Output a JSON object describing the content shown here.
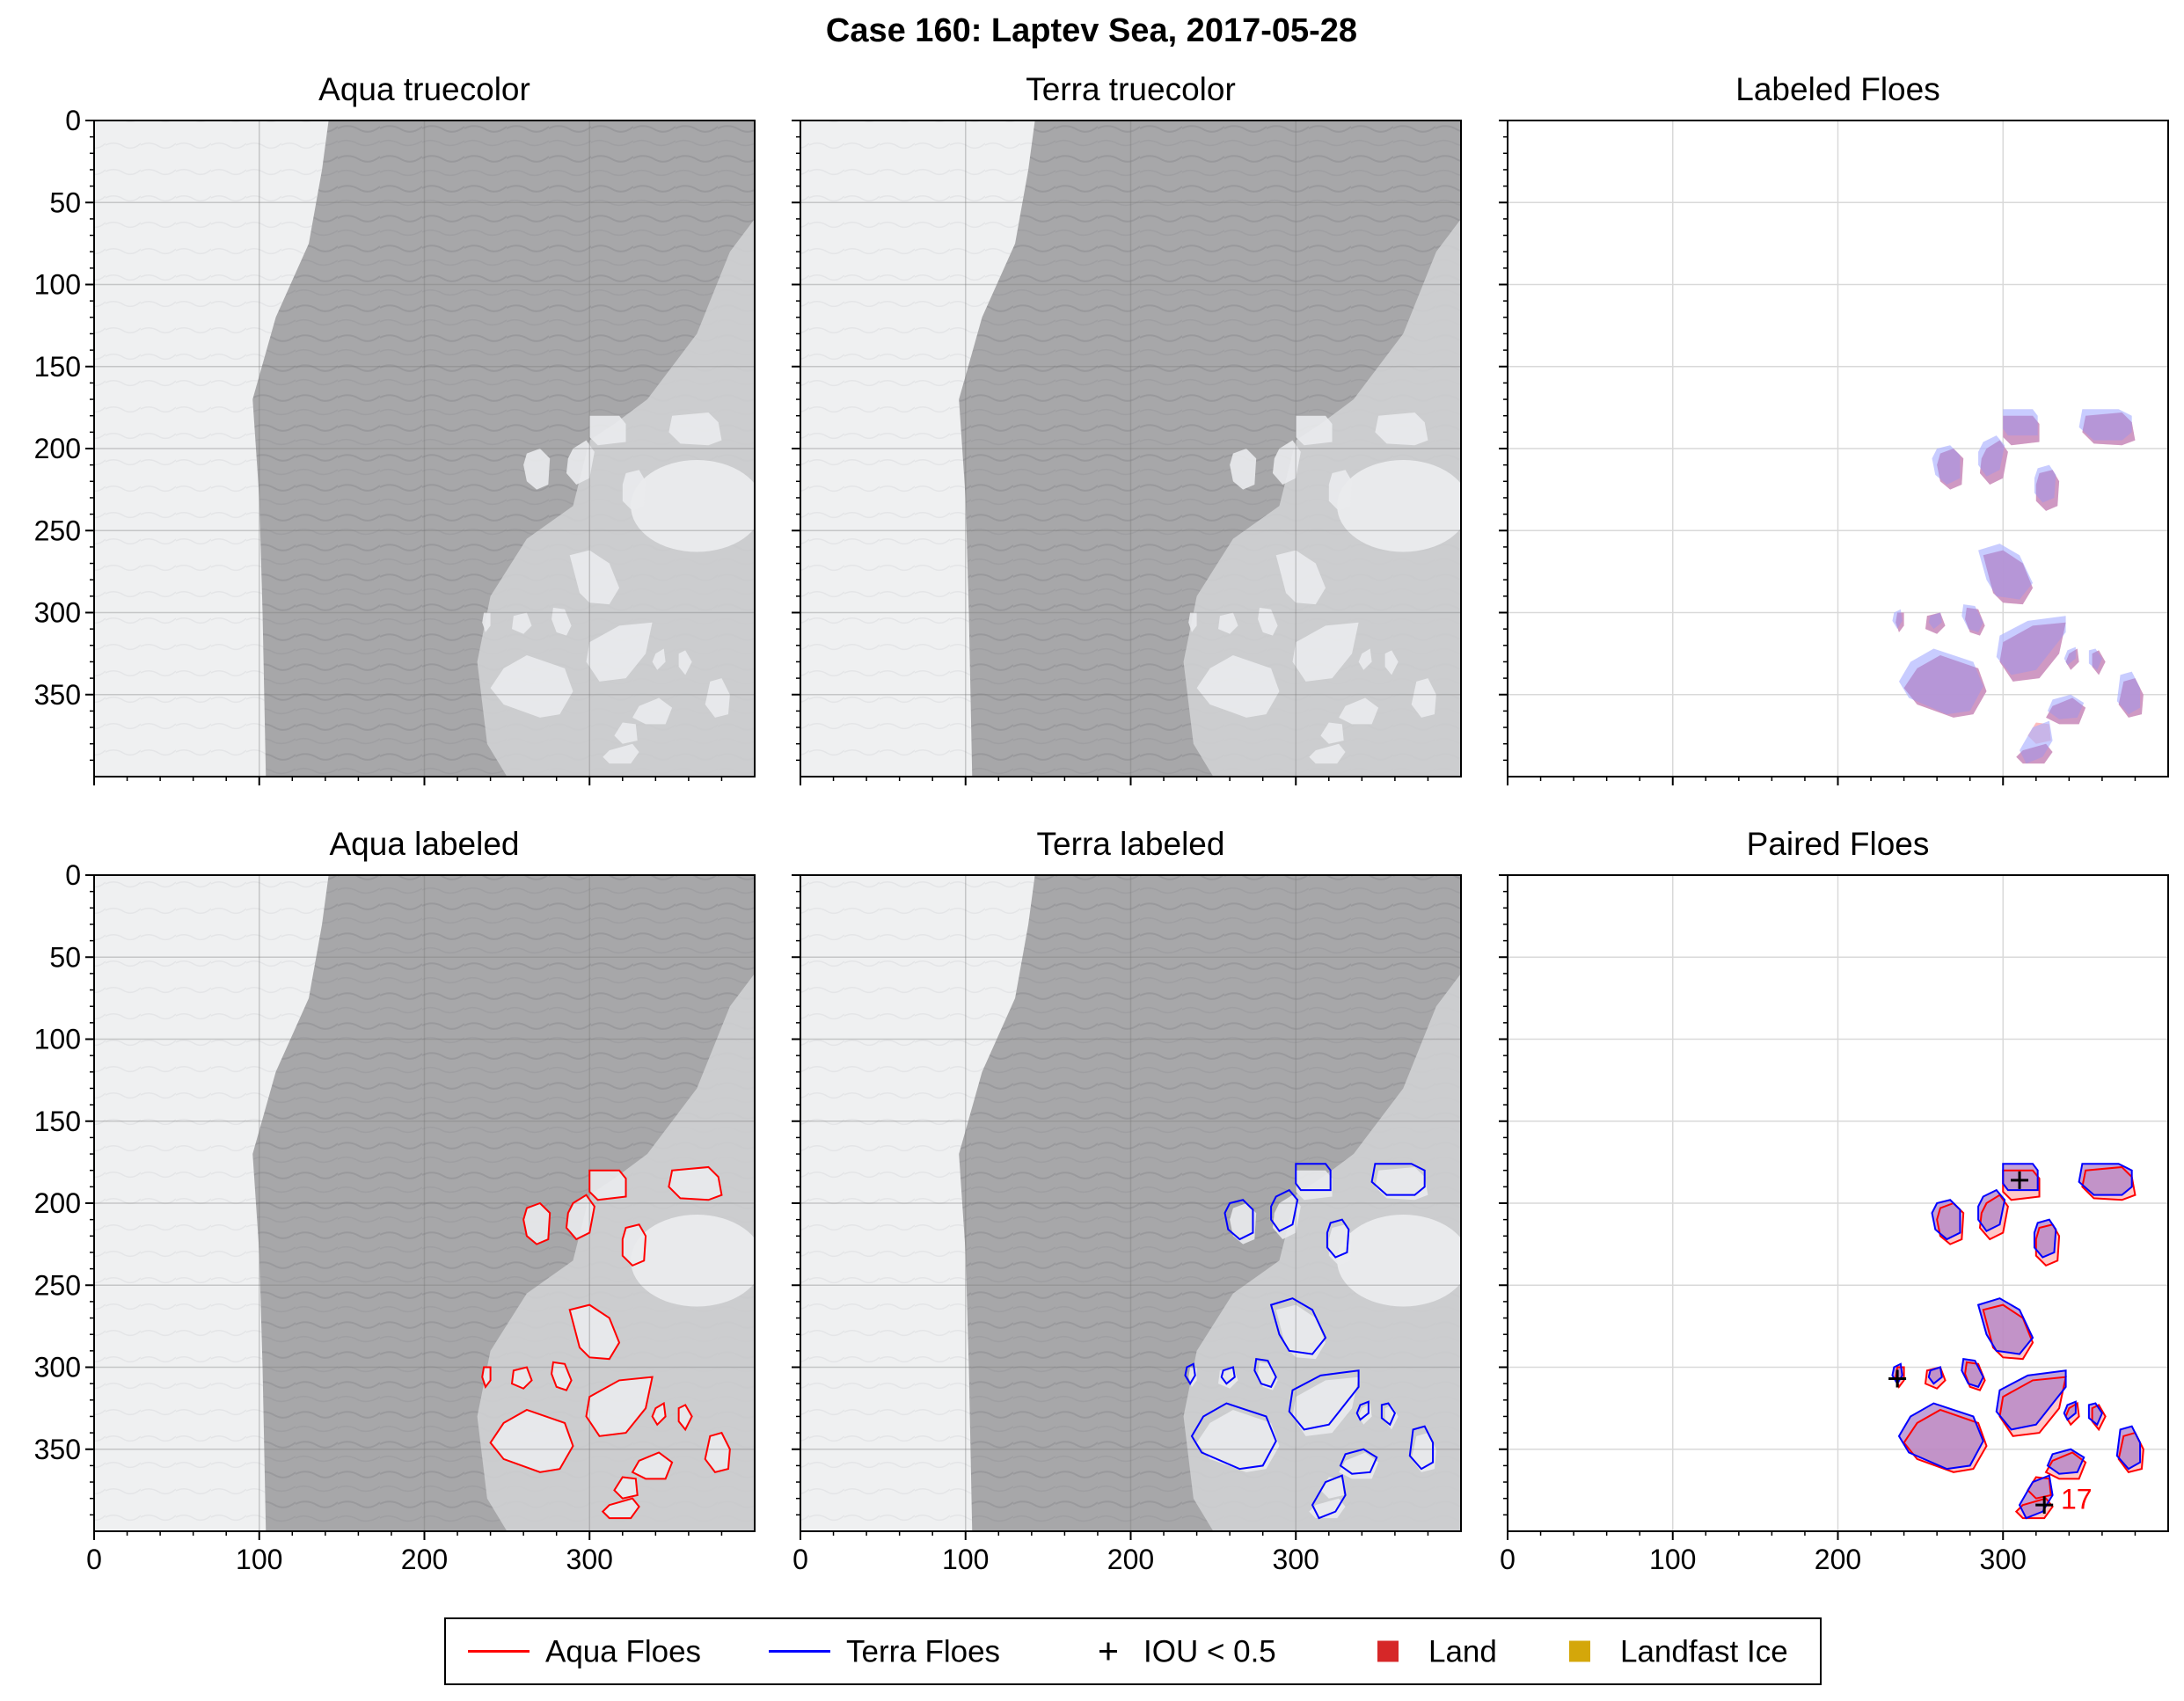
{
  "figure": {
    "title": "Case 160: Laptev Sea, 2017-05-28"
  },
  "panels": [
    {
      "id": "aqua-truecolor",
      "title": "Aqua truecolor",
      "kind": "image"
    },
    {
      "id": "terra-truecolor",
      "title": "Terra truecolor",
      "kind": "image"
    },
    {
      "id": "labeled-floes",
      "title": "Labeled Floes",
      "kind": "labels"
    },
    {
      "id": "aqua-labeled",
      "title": "Aqua labeled",
      "kind": "image-outline",
      "outline": "aqua"
    },
    {
      "id": "terra-labeled",
      "title": "Terra labeled",
      "kind": "image-outline",
      "outline": "terra"
    },
    {
      "id": "paired-floes",
      "title": "Paired Floes",
      "kind": "paired"
    }
  ],
  "axes": {
    "xlim": [
      0,
      400
    ],
    "ylim": [
      400,
      0
    ],
    "xticks": [
      "0",
      "100",
      "200",
      "300"
    ],
    "yticks": [
      "0",
      "50",
      "100",
      "150",
      "200",
      "250",
      "300",
      "350"
    ],
    "grid": true
  },
  "legend": {
    "placement": "bottom-center",
    "items": [
      {
        "label": "Aqua Floes",
        "symbol": "line",
        "color": "#ff0000"
      },
      {
        "label": "Terra Floes",
        "symbol": "line",
        "color": "#0000ff"
      },
      {
        "label": "IOU < 0.5",
        "symbol": "plus",
        "color": "#000000"
      },
      {
        "label": "Land",
        "symbol": "square",
        "color": "#d62728"
      },
      {
        "label": "Landfast Ice",
        "symbol": "square",
        "color": "#d4a70a"
      }
    ]
  },
  "annotations": [
    {
      "text": "17",
      "x": 335,
      "y": 380,
      "color": "#ff0000"
    }
  ],
  "colors": {
    "aqua": "#ff0000",
    "terra": "#0000ff",
    "aqua_fill": "#ffb0b0",
    "terra_fill": "#aab0ff",
    "overlap_fill": "#a87cc8",
    "overlap_stroke": "#7a4bb0",
    "fastice": "#eff0f1",
    "water": "#a7a7a9",
    "packice": "#d2d3d6"
  },
  "chart_data": {
    "type": "image-panels",
    "xlim": [
      0,
      400
    ],
    "ylim": [
      400,
      0
    ],
    "floes": [
      {
        "id": 1,
        "aqua": [
          [
            300,
            180
          ],
          [
            318,
            180
          ],
          [
            322,
            185
          ],
          [
            322,
            196
          ],
          [
            305,
            198
          ],
          [
            300,
            193
          ]
        ],
        "terra": [
          [
            300,
            176
          ],
          [
            318,
            176
          ],
          [
            321,
            180
          ],
          [
            321,
            192
          ],
          [
            303,
            192
          ],
          [
            300,
            188
          ]
        ]
      },
      {
        "id": 2,
        "aqua": [
          [
            350,
            180
          ],
          [
            372,
            178
          ],
          [
            378,
            184
          ],
          [
            380,
            195
          ],
          [
            372,
            198
          ],
          [
            355,
            197
          ],
          [
            348,
            190
          ]
        ],
        "terra": [
          [
            348,
            176
          ],
          [
            370,
            176
          ],
          [
            378,
            180
          ],
          [
            378,
            190
          ],
          [
            372,
            195
          ],
          [
            355,
            195
          ],
          [
            346,
            187
          ]
        ]
      },
      {
        "id": 3,
        "aqua": [
          [
            262,
            203
          ],
          [
            270,
            200
          ],
          [
            276,
            206
          ],
          [
            275,
            222
          ],
          [
            268,
            225
          ],
          [
            262,
            220
          ],
          [
            260,
            210
          ]
        ],
        "terra": [
          [
            260,
            200
          ],
          [
            268,
            198
          ],
          [
            274,
            204
          ],
          [
            274,
            218
          ],
          [
            266,
            222
          ],
          [
            259,
            216
          ],
          [
            257,
            206
          ]
        ]
      },
      {
        "id": 4,
        "aqua": [
          [
            290,
            200
          ],
          [
            298,
            195
          ],
          [
            303,
            202
          ],
          [
            300,
            218
          ],
          [
            292,
            222
          ],
          [
            286,
            215
          ],
          [
            287,
            206
          ]
        ],
        "terra": [
          [
            288,
            196
          ],
          [
            296,
            192
          ],
          [
            301,
            198
          ],
          [
            298,
            213
          ],
          [
            290,
            217
          ],
          [
            285,
            210
          ],
          [
            285,
            202
          ]
        ]
      },
      {
        "id": 5,
        "aqua": [
          [
            322,
            215
          ],
          [
            330,
            213
          ],
          [
            334,
            220
          ],
          [
            333,
            235
          ],
          [
            326,
            238
          ],
          [
            320,
            232
          ],
          [
            320,
            222
          ]
        ],
        "terra": [
          [
            321,
            212
          ],
          [
            328,
            210
          ],
          [
            332,
            216
          ],
          [
            331,
            230
          ],
          [
            324,
            233
          ],
          [
            319,
            227
          ],
          [
            319,
            218
          ]
        ]
      },
      {
        "id": 6,
        "aqua": [
          [
            288,
            265
          ],
          [
            300,
            262
          ],
          [
            312,
            270
          ],
          [
            318,
            285
          ],
          [
            312,
            295
          ],
          [
            300,
            294
          ],
          [
            294,
            288
          ]
        ],
        "terra": [
          [
            285,
            262
          ],
          [
            298,
            258
          ],
          [
            310,
            265
          ],
          [
            318,
            282
          ],
          [
            310,
            292
          ],
          [
            296,
            290
          ],
          [
            290,
            280
          ]
        ]
      },
      {
        "id": 7,
        "aqua": [
          [
            236,
            300
          ],
          [
            240,
            300
          ],
          [
            240,
            308
          ],
          [
            237,
            312
          ],
          [
            235,
            306
          ]
        ],
        "terra": [
          [
            234,
            300
          ],
          [
            238,
            298
          ],
          [
            239,
            305
          ],
          [
            236,
            310
          ],
          [
            233,
            305
          ]
        ]
      },
      {
        "id": 8,
        "aqua": [
          [
            254,
            302
          ],
          [
            262,
            300
          ],
          [
            265,
            308
          ],
          [
            260,
            313
          ],
          [
            253,
            310
          ]
        ],
        "terra": [
          [
            256,
            302
          ],
          [
            262,
            300
          ],
          [
            263,
            306
          ],
          [
            258,
            310
          ],
          [
            255,
            306
          ]
        ]
      },
      {
        "id": 9,
        "aqua": [
          [
            278,
            297
          ],
          [
            285,
            298
          ],
          [
            289,
            308
          ],
          [
            286,
            314
          ],
          [
            280,
            312
          ],
          [
            277,
            304
          ]
        ],
        "terra": [
          [
            276,
            295
          ],
          [
            283,
            296
          ],
          [
            288,
            306
          ],
          [
            285,
            312
          ],
          [
            279,
            310
          ],
          [
            275,
            302
          ]
        ]
      },
      {
        "id": 10,
        "aqua": [
          [
            300,
            318
          ],
          [
            318,
            308
          ],
          [
            338,
            306
          ],
          [
            334,
            325
          ],
          [
            322,
            340
          ],
          [
            306,
            342
          ],
          [
            298,
            330
          ]
        ],
        "terra": [
          [
            298,
            314
          ],
          [
            315,
            305
          ],
          [
            338,
            302
          ],
          [
            338,
            312
          ],
          [
            320,
            335
          ],
          [
            305,
            338
          ],
          [
            296,
            327
          ]
        ]
      },
      {
        "id": 11,
        "aqua": [
          [
            340,
            325
          ],
          [
            345,
            322
          ],
          [
            346,
            330
          ],
          [
            341,
            335
          ],
          [
            338,
            330
          ]
        ],
        "terra": [
          [
            339,
            323
          ],
          [
            344,
            321
          ],
          [
            344,
            328
          ],
          [
            339,
            332
          ],
          [
            337,
            328
          ]
        ]
      },
      {
        "id": 12,
        "aqua": [
          [
            354,
            325
          ],
          [
            358,
            323
          ],
          [
            362,
            330
          ],
          [
            358,
            338
          ],
          [
            354,
            333
          ]
        ],
        "terra": [
          [
            352,
            323
          ],
          [
            356,
            322
          ],
          [
            360,
            328
          ],
          [
            357,
            335
          ],
          [
            352,
            331
          ]
        ]
      },
      {
        "id": 13,
        "aqua": [
          [
            248,
            334
          ],
          [
            262,
            326
          ],
          [
            285,
            334
          ],
          [
            290,
            348
          ],
          [
            282,
            362
          ],
          [
            270,
            364
          ],
          [
            248,
            356
          ],
          [
            240,
            346
          ]
        ],
        "terra": [
          [
            244,
            330
          ],
          [
            258,
            322
          ],
          [
            282,
            330
          ],
          [
            288,
            345
          ],
          [
            280,
            360
          ],
          [
            266,
            362
          ],
          [
            243,
            352
          ],
          [
            237,
            342
          ]
        ]
      },
      {
        "id": 14,
        "aqua": [
          [
            373,
            342
          ],
          [
            380,
            340
          ],
          [
            385,
            350
          ],
          [
            384,
            362
          ],
          [
            376,
            364
          ],
          [
            370,
            356
          ]
        ],
        "terra": [
          [
            371,
            338
          ],
          [
            378,
            336
          ],
          [
            383,
            346
          ],
          [
            383,
            358
          ],
          [
            376,
            362
          ],
          [
            369,
            354
          ]
        ]
      },
      {
        "id": 15,
        "aqua": [
          [
            330,
            357
          ],
          [
            342,
            352
          ],
          [
            350,
            358
          ],
          [
            346,
            368
          ],
          [
            334,
            368
          ],
          [
            326,
            364
          ]
        ],
        "terra": [
          [
            330,
            353
          ],
          [
            341,
            350
          ],
          [
            349,
            355
          ],
          [
            345,
            364
          ],
          [
            334,
            365
          ],
          [
            327,
            360
          ]
        ]
      },
      {
        "id": 16,
        "aqua": [
          [
            320,
            367
          ],
          [
            328,
            368
          ],
          [
            329,
            378
          ],
          [
            320,
            380
          ],
          [
            315,
            375
          ]
        ],
        "terra": null
      },
      {
        "id": 17,
        "aqua": [
          [
            312,
            384
          ],
          [
            326,
            380
          ],
          [
            330,
            385
          ],
          [
            325,
            392
          ],
          [
            312,
            392
          ],
          [
            308,
            388
          ]
        ],
        "terra": [
          [
            318,
            370
          ],
          [
            328,
            366
          ],
          [
            330,
            378
          ],
          [
            324,
            388
          ],
          [
            314,
            392
          ],
          [
            310,
            384
          ]
        ]
      }
    ],
    "iou_below_half": [
      [
        310,
        186
      ],
      [
        236,
        307
      ],
      [
        325,
        384
      ]
    ]
  }
}
